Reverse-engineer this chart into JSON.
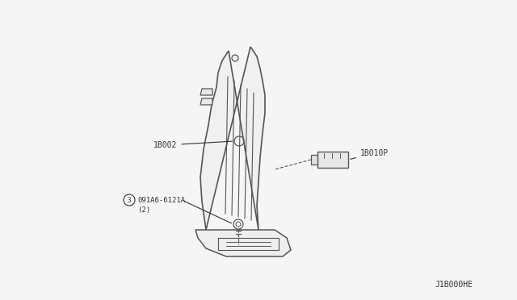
{
  "background_color": "#f5f5f5",
  "line_color": "#555555",
  "text_color": "#333333",
  "diagram_code": "J1B000HE",
  "labels": {
    "main_part": "1B002",
    "connector": "1B010P",
    "bolt": "091A6-6121A",
    "bolt_count": "(2)",
    "bolt_num": "3"
  },
  "fig_width": 6.4,
  "fig_height": 3.72,
  "dpi": 100
}
